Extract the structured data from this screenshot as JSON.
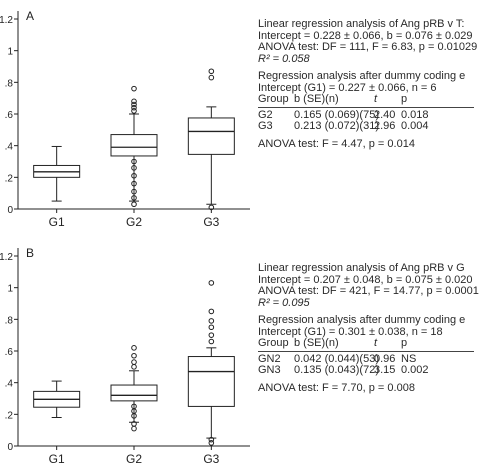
{
  "chart_data": [
    {
      "type": "box",
      "panel_label": "A",
      "title": "",
      "xlabel": "",
      "ylabel": "",
      "categories": [
        "G1",
        "G2",
        "G3"
      ],
      "y_tick_labels": [
        "0",
        ".2",
        ".4",
        ".6",
        ".8",
        "1",
        "1.2"
      ],
      "ylim": [
        0,
        1.2
      ],
      "grid": false,
      "boxes": [
        {
          "name": "G1",
          "min": 0.05,
          "q1": 0.2,
          "median": 0.235,
          "q3": 0.275,
          "max": 0.395,
          "outliers": []
        },
        {
          "name": "G2",
          "min": 0.05,
          "q1": 0.335,
          "median": 0.39,
          "q3": 0.47,
          "max": 0.6,
          "outliers": [
            0.62,
            0.64,
            0.66,
            0.68,
            0.76,
            0.3,
            0.26,
            0.21,
            0.16,
            0.11,
            0.07,
            0.03
          ]
        },
        {
          "name": "G3",
          "min": 0.03,
          "q1": 0.345,
          "median": 0.49,
          "q3": 0.575,
          "max": 0.645,
          "outliers": [
            0.83,
            0.87,
            0.01
          ]
        }
      ],
      "annotations": {
        "title_line": "Linear regression analysis of Ang pRB v T:",
        "intercept": "Intercept = 0.228 ± 0.066, b = 0.076 ± 0.029",
        "anova": "ANOVA test: DF = 111, F = 6.83, p = 0.01029",
        "r2": "R² = 0.058",
        "dummy_title": "Regression analysis after dummy coding e",
        "dummy_intercept": "Intercept (G1) = 0.227 ± 0.066, n = 6",
        "table_header": [
          "Group",
          "b (SE)(n)",
          "t",
          "p"
        ],
        "table_rows": [
          [
            "G2",
            "0.165 (0.069)(75)",
            "2.40",
            "0.018"
          ],
          [
            "G3",
            "0.213 (0.072)(31)",
            "2.96",
            "0.004"
          ]
        ],
        "anova2": "ANOVA test: F = 4.47, p = 0.014"
      }
    },
    {
      "type": "box",
      "panel_label": "B",
      "title": "",
      "xlabel": "",
      "ylabel": "",
      "categories": [
        "G1",
        "G2",
        "G3"
      ],
      "y_tick_labels": [
        "0",
        ".2",
        ".4",
        ".6",
        ".8",
        "1",
        "1.2"
      ],
      "ylim": [
        0,
        1.2
      ],
      "grid": false,
      "boxes": [
        {
          "name": "G1",
          "min": 0.18,
          "q1": 0.245,
          "median": 0.295,
          "q3": 0.345,
          "max": 0.41,
          "outliers": []
        },
        {
          "name": "G2",
          "min": 0.15,
          "q1": 0.285,
          "median": 0.32,
          "q3": 0.385,
          "max": 0.475,
          "outliers": [
            0.5,
            0.53,
            0.57,
            0.62,
            0.25,
            0.22,
            0.19,
            0.14,
            0.11
          ]
        },
        {
          "name": "G3",
          "min": 0.05,
          "q1": 0.25,
          "median": 0.47,
          "q3": 0.565,
          "max": 0.62,
          "outliers": [
            0.66,
            0.7,
            0.75,
            0.79,
            0.85,
            1.03,
            0.04,
            0.02
          ]
        }
      ],
      "annotations": {
        "title_line": "Linear regression analysis of Ang pRB v G",
        "intercept": "Intercept = 0.207 ± 0.048, b = 0.075 ± 0.020",
        "anova": "ANOVA test: DF = 421, F = 14.77, p = 0.0001",
        "r2": "R² = 0.095",
        "dummy_title": "Regression analysis after dummy coding e",
        "dummy_intercept": "Intercept (G1) = 0.301 ± 0.038, n = 18",
        "table_header": [
          "Group",
          "b (SE)(n)",
          "t",
          "p"
        ],
        "table_rows": [
          [
            "GN2",
            "0.042 (0.044)(53)",
            "0.96",
            "NS"
          ],
          [
            "GN3",
            "0.135 (0.043)(72)",
            "3.15",
            "0.002"
          ]
        ],
        "anova2": "ANOVA test: F = 7.70, p = 0.008"
      }
    }
  ],
  "colors": {
    "ink": "#222222",
    "background": "#ffffff"
  }
}
